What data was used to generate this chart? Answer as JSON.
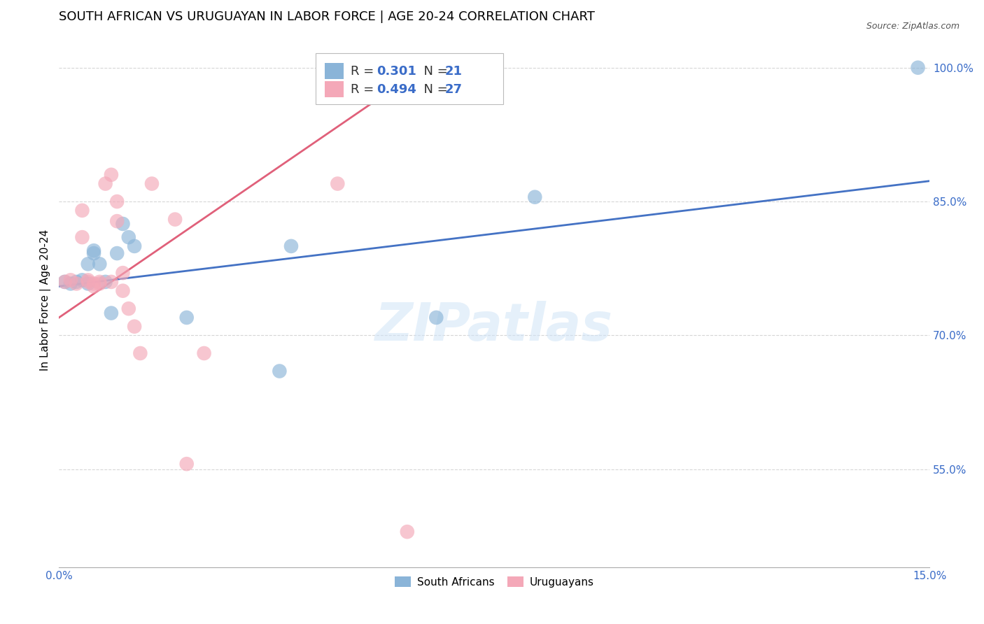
{
  "title": "SOUTH AFRICAN VS URUGUAYAN IN LABOR FORCE | AGE 20-24 CORRELATION CHART",
  "source": "Source: ZipAtlas.com",
  "ylabel": "In Labor Force | Age 20-24",
  "ytick_labels": [
    "100.0%",
    "85.0%",
    "70.0%",
    "55.0%"
  ],
  "ytick_values": [
    1.0,
    0.85,
    0.7,
    0.55
  ],
  "xmin": 0.0,
  "xmax": 0.15,
  "ymin": 0.44,
  "ymax": 1.04,
  "south_africans": {
    "color": "#8ab4d8",
    "line_color": "#4472c4",
    "x": [
      0.001,
      0.002,
      0.003,
      0.004,
      0.005,
      0.005,
      0.006,
      0.006,
      0.007,
      0.008,
      0.009,
      0.01,
      0.011,
      0.012,
      0.013,
      0.022,
      0.038,
      0.04,
      0.065,
      0.082,
      0.148
    ],
    "y": [
      0.76,
      0.758,
      0.76,
      0.762,
      0.758,
      0.78,
      0.792,
      0.795,
      0.78,
      0.76,
      0.725,
      0.792,
      0.825,
      0.81,
      0.8,
      0.72,
      0.66,
      0.8,
      0.72,
      0.855,
      1.0
    ]
  },
  "uruguayans": {
    "color": "#f4a8b8",
    "line_color": "#e0607a",
    "x": [
      0.001,
      0.002,
      0.003,
      0.004,
      0.004,
      0.005,
      0.005,
      0.006,
      0.006,
      0.007,
      0.007,
      0.008,
      0.009,
      0.009,
      0.01,
      0.01,
      0.011,
      0.011,
      0.012,
      0.013,
      0.014,
      0.016,
      0.02,
      0.022,
      0.025,
      0.048,
      0.06
    ],
    "y": [
      0.76,
      0.762,
      0.758,
      0.81,
      0.84,
      0.76,
      0.762,
      0.755,
      0.758,
      0.758,
      0.76,
      0.87,
      0.88,
      0.76,
      0.85,
      0.828,
      0.75,
      0.77,
      0.73,
      0.71,
      0.68,
      0.87,
      0.83,
      0.556,
      0.68,
      0.87,
      0.48
    ]
  },
  "watermark": "ZIPatlas",
  "title_fontsize": 13,
  "axis_label_fontsize": 11,
  "tick_fontsize": 11,
  "legend_fontsize": 13
}
